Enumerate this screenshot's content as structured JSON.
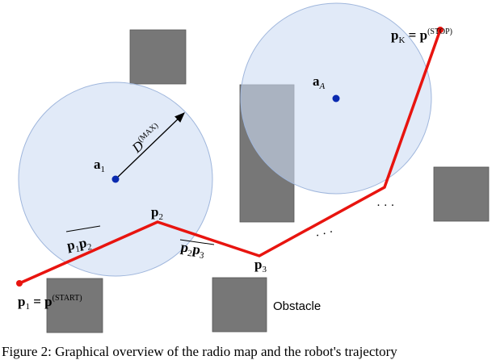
{
  "labels": {
    "p1": {
      "base": "p",
      "sub": "1",
      "eq": " = p",
      "sup": "(START)"
    },
    "pK": {
      "base": "p",
      "sub": "K",
      "eq": " = p",
      "sup": "(STOP)"
    },
    "p2": {
      "base": "p",
      "sub": "2"
    },
    "p3": {
      "base": "p",
      "sub": "3"
    },
    "a1": {
      "base": "a",
      "sub": "1"
    },
    "aA": {
      "base": "a",
      "sub": "A"
    },
    "dmax": {
      "base": "D",
      "sup": "(MAX)"
    },
    "seg12": {
      "a": "p",
      "a_sub": "1",
      "b": "p",
      "b_sub": "2"
    },
    "seg23": {
      "a": "p",
      "a_sub": "2",
      "b": "p",
      "b_sub": "3"
    },
    "dots1": "· · ·",
    "dots2": "· · ·",
    "obstacle": "Obstacle"
  },
  "caption": "Figure 2: Graphical overview of the radio map and the robot's trajectory"
}
